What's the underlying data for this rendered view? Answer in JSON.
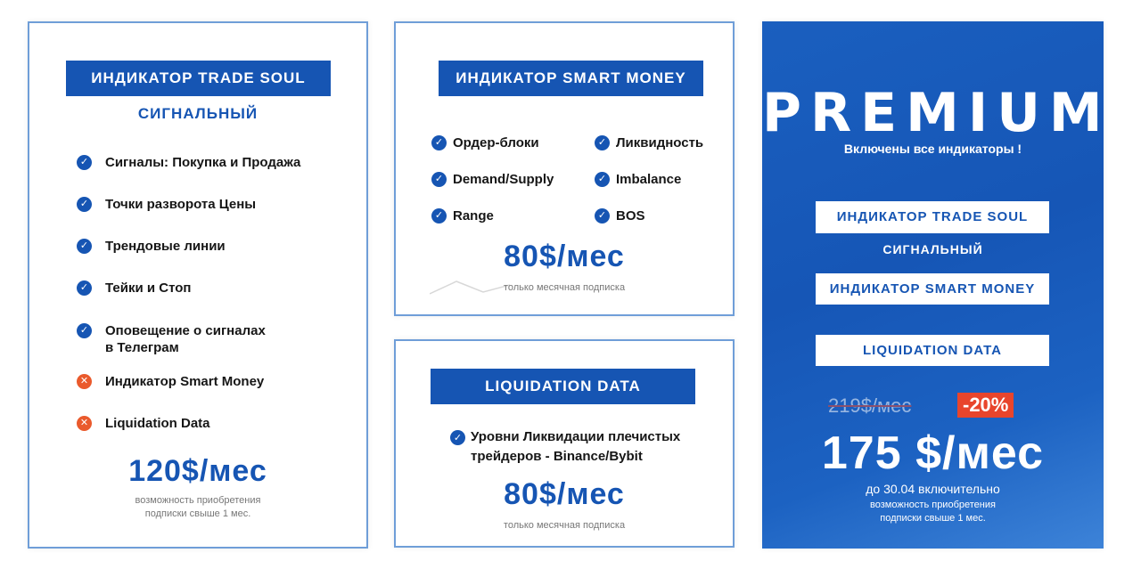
{
  "card1": {
    "title": "ИНДИКАТОР TRADE SOUL",
    "subtitle": "СИГНАЛЬНЫЙ",
    "features": [
      {
        "label": "Сигналы: Покупка и Продажа",
        "status": "ok"
      },
      {
        "label": "Точки разворота Цены",
        "status": "ok"
      },
      {
        "label": "Трендовые линии",
        "status": "ok"
      },
      {
        "label": "Тейки и Стоп",
        "status": "ok"
      },
      {
        "label": "Оповещение о сигналах",
        "label2": "в Телеграм",
        "status": "ok"
      },
      {
        "label": "Индикатор Smart Money",
        "status": "no"
      },
      {
        "label": "Liquidation Data",
        "status": "no"
      }
    ],
    "price": "120$/мес",
    "note_line1": "возможность приобретения",
    "note_line2": "подписки свыше 1 мес."
  },
  "card2": {
    "title": "ИНДИКАТОР SMART MONEY",
    "features_left": [
      "Ордер-блоки",
      "Demand/Supply",
      "Range"
    ],
    "features_right": [
      "Ликвидность",
      "Imbalance",
      "BOS"
    ],
    "price": "80$/мес",
    "note": "только месячная подписка"
  },
  "card3": {
    "title": "LIQUIDATION DATA",
    "feature_line1": "Уровни Ликвидации плечистых",
    "feature_line2": "трейдеров - Binance/Bybit",
    "price": "80$/мес",
    "note": "только месячная подписка"
  },
  "card4": {
    "title": "PREMIUM",
    "subtitle": "Включены все индикаторы !",
    "box1": "ИНДИКАТОР TRADE SOUL",
    "box1_sub": "СИГНАЛЬНЫЙ",
    "box2": "ИНДИКАТОР SMART MONEY",
    "box3": "LIQUIDATION DATA",
    "old_price": "219$/мес",
    "discount": "-20%",
    "price": "175 $/мес",
    "deadline": "до 30.04 включительно",
    "note_line1": "возможность приобретения",
    "note_line2": "подписки свыше 1 мес."
  },
  "colors": {
    "brand_blue": "#1655b3",
    "check_icon": "#1655b3",
    "cross_icon": "#ea5a2c",
    "discount_badge": "#e8452c"
  }
}
